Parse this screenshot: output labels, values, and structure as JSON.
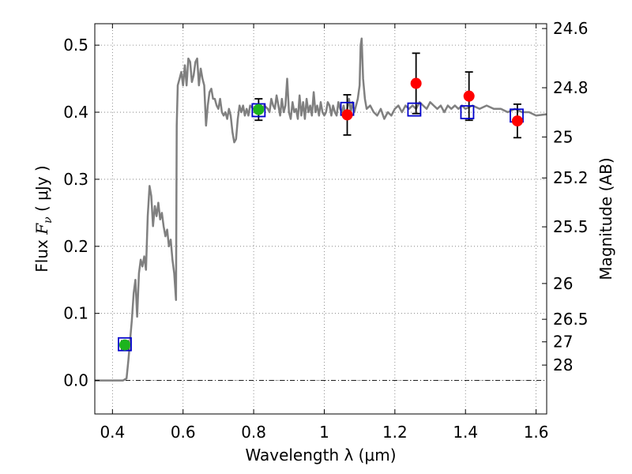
{
  "chart_data": {
    "type": "line",
    "xlabel": "Wavelength  λ (μm)",
    "ylabel_prefix": "Flux  ",
    "ylabel_var": "F",
    "ylabel_sub": "ν",
    "ylabel_unit": "  ( μJy )",
    "y2label": "Magnitude (AB)",
    "xlim": [
      0.35,
      1.63
    ],
    "ylim": [
      -0.05,
      0.532
    ],
    "grid": true,
    "x_ticks": [
      {
        "value": 0.4,
        "label": "0.4"
      },
      {
        "value": 0.6,
        "label": "0.6"
      },
      {
        "value": 0.8,
        "label": "0.8"
      },
      {
        "value": 1.0,
        "label": "1"
      },
      {
        "value": 1.2,
        "label": "1.2"
      },
      {
        "value": 1.4,
        "label": "1.4"
      },
      {
        "value": 1.6,
        "label": "1.6"
      }
    ],
    "y_ticks": [
      {
        "value": 0.0,
        "label": "0.0"
      },
      {
        "value": 0.1,
        "label": "0.1"
      },
      {
        "value": 0.2,
        "label": "0.2"
      },
      {
        "value": 0.3,
        "label": "0.3"
      },
      {
        "value": 0.4,
        "label": "0.4"
      },
      {
        "value": 0.5,
        "label": "0.5"
      }
    ],
    "mag_ticks": [
      {
        "value": 24.6,
        "label": "24.6"
      },
      {
        "value": 24.8,
        "label": "24.8"
      },
      {
        "value": 25.0,
        "label": "25"
      },
      {
        "value": 25.2,
        "label": "25.2"
      },
      {
        "value": 25.5,
        "label": "25.5"
      },
      {
        "value": 26.0,
        "label": "26"
      },
      {
        "value": 26.5,
        "label": "26.5"
      },
      {
        "value": 27.0,
        "label": "27"
      },
      {
        "value": 28.0,
        "label": "28"
      }
    ],
    "zero_line": 0.0,
    "model_spectrum": {
      "color": "#808080",
      "points": [
        [
          0.35,
          0.0
        ],
        [
          0.43,
          0.0
        ],
        [
          0.44,
          0.003
        ],
        [
          0.445,
          0.03
        ],
        [
          0.45,
          0.06
        ],
        [
          0.455,
          0.09
        ],
        [
          0.46,
          0.13
        ],
        [
          0.465,
          0.15
        ],
        [
          0.47,
          0.095
        ],
        [
          0.475,
          0.16
        ],
        [
          0.48,
          0.18
        ],
        [
          0.485,
          0.17
        ],
        [
          0.49,
          0.185
        ],
        [
          0.495,
          0.165
        ],
        [
          0.5,
          0.245
        ],
        [
          0.505,
          0.29
        ],
        [
          0.51,
          0.275
        ],
        [
          0.515,
          0.23
        ],
        [
          0.52,
          0.26
        ],
        [
          0.525,
          0.245
        ],
        [
          0.53,
          0.265
        ],
        [
          0.535,
          0.24
        ],
        [
          0.54,
          0.25
        ],
        [
          0.545,
          0.23
        ],
        [
          0.55,
          0.215
        ],
        [
          0.555,
          0.225
        ],
        [
          0.56,
          0.2
        ],
        [
          0.565,
          0.21
        ],
        [
          0.57,
          0.18
        ],
        [
          0.575,
          0.16
        ],
        [
          0.58,
          0.12
        ],
        [
          0.582,
          0.38
        ],
        [
          0.585,
          0.44
        ],
        [
          0.59,
          0.45
        ],
        [
          0.595,
          0.46
        ],
        [
          0.6,
          0.44
        ],
        [
          0.605,
          0.47
        ],
        [
          0.61,
          0.44
        ],
        [
          0.615,
          0.48
        ],
        [
          0.62,
          0.475
        ],
        [
          0.625,
          0.445
        ],
        [
          0.63,
          0.455
        ],
        [
          0.635,
          0.475
        ],
        [
          0.64,
          0.48
        ],
        [
          0.645,
          0.44
        ],
        [
          0.65,
          0.465
        ],
        [
          0.655,
          0.45
        ],
        [
          0.66,
          0.44
        ],
        [
          0.665,
          0.38
        ],
        [
          0.67,
          0.41
        ],
        [
          0.675,
          0.43
        ],
        [
          0.68,
          0.435
        ],
        [
          0.685,
          0.42
        ],
        [
          0.69,
          0.42
        ],
        [
          0.695,
          0.41
        ],
        [
          0.7,
          0.405
        ],
        [
          0.705,
          0.42
        ],
        [
          0.71,
          0.4
        ],
        [
          0.715,
          0.395
        ],
        [
          0.72,
          0.4
        ],
        [
          0.725,
          0.39
        ],
        [
          0.73,
          0.405
        ],
        [
          0.735,
          0.395
        ],
        [
          0.74,
          0.37
        ],
        [
          0.745,
          0.355
        ],
        [
          0.75,
          0.36
        ],
        [
          0.755,
          0.39
        ],
        [
          0.76,
          0.41
        ],
        [
          0.765,
          0.4
        ],
        [
          0.77,
          0.41
        ],
        [
          0.775,
          0.395
        ],
        [
          0.78,
          0.405
        ],
        [
          0.785,
          0.395
        ],
        [
          0.79,
          0.41
        ],
        [
          0.8,
          0.405
        ],
        [
          0.81,
          0.41
        ],
        [
          0.82,
          0.4
        ],
        [
          0.83,
          0.41
        ],
        [
          0.84,
          0.405
        ],
        [
          0.845,
          0.4
        ],
        [
          0.85,
          0.42
        ],
        [
          0.855,
          0.41
        ],
        [
          0.86,
          0.405
        ],
        [
          0.865,
          0.425
        ],
        [
          0.87,
          0.41
        ],
        [
          0.875,
          0.395
        ],
        [
          0.88,
          0.42
        ],
        [
          0.885,
          0.4
        ],
        [
          0.89,
          0.41
        ],
        [
          0.895,
          0.45
        ],
        [
          0.9,
          0.4
        ],
        [
          0.905,
          0.39
        ],
        [
          0.91,
          0.415
        ],
        [
          0.915,
          0.4
        ],
        [
          0.92,
          0.405
        ],
        [
          0.925,
          0.39
        ],
        [
          0.93,
          0.425
        ],
        [
          0.935,
          0.395
        ],
        [
          0.94,
          0.415
        ],
        [
          0.945,
          0.39
        ],
        [
          0.95,
          0.42
        ],
        [
          0.955,
          0.4
        ],
        [
          0.96,
          0.41
        ],
        [
          0.965,
          0.395
        ],
        [
          0.97,
          0.43
        ],
        [
          0.975,
          0.4
        ],
        [
          0.98,
          0.41
        ],
        [
          0.985,
          0.395
        ],
        [
          0.99,
          0.415
        ],
        [
          0.995,
          0.4
        ],
        [
          1.0,
          0.395
        ],
        [
          1.005,
          0.4
        ],
        [
          1.01,
          0.415
        ],
        [
          1.015,
          0.41
        ],
        [
          1.02,
          0.395
        ],
        [
          1.025,
          0.41
        ],
        [
          1.03,
          0.4
        ],
        [
          1.035,
          0.395
        ],
        [
          1.04,
          0.415
        ],
        [
          1.045,
          0.405
        ],
        [
          1.05,
          0.4
        ],
        [
          1.055,
          0.41
        ],
        [
          1.06,
          0.395
        ],
        [
          1.065,
          0.405
        ],
        [
          1.07,
          0.42
        ],
        [
          1.075,
          0.4
        ],
        [
          1.08,
          0.415
        ],
        [
          1.085,
          0.4
        ],
        [
          1.09,
          0.41
        ],
        [
          1.095,
          0.42
        ],
        [
          1.1,
          0.44
        ],
        [
          1.103,
          0.5
        ],
        [
          1.106,
          0.51
        ],
        [
          1.11,
          0.45
        ],
        [
          1.115,
          0.42
        ],
        [
          1.12,
          0.405
        ],
        [
          1.13,
          0.41
        ],
        [
          1.14,
          0.4
        ],
        [
          1.15,
          0.395
        ],
        [
          1.16,
          0.405
        ],
        [
          1.17,
          0.39
        ],
        [
          1.18,
          0.4
        ],
        [
          1.19,
          0.395
        ],
        [
          1.2,
          0.405
        ],
        [
          1.21,
          0.41
        ],
        [
          1.22,
          0.4
        ],
        [
          1.23,
          0.41
        ],
        [
          1.24,
          0.405
        ],
        [
          1.25,
          0.41
        ],
        [
          1.26,
          0.405
        ],
        [
          1.27,
          0.415
        ],
        [
          1.28,
          0.41
        ],
        [
          1.29,
          0.405
        ],
        [
          1.3,
          0.415
        ],
        [
          1.31,
          0.41
        ],
        [
          1.32,
          0.405
        ],
        [
          1.33,
          0.41
        ],
        [
          1.34,
          0.4
        ],
        [
          1.35,
          0.41
        ],
        [
          1.36,
          0.405
        ],
        [
          1.37,
          0.41
        ],
        [
          1.38,
          0.405
        ],
        [
          1.39,
          0.41
        ],
        [
          1.4,
          0.405
        ],
        [
          1.42,
          0.41
        ],
        [
          1.44,
          0.405
        ],
        [
          1.46,
          0.41
        ],
        [
          1.48,
          0.405
        ],
        [
          1.5,
          0.405
        ],
        [
          1.52,
          0.4
        ],
        [
          1.54,
          0.405
        ],
        [
          1.56,
          0.4
        ],
        [
          1.58,
          0.4
        ],
        [
          1.6,
          0.395
        ],
        [
          1.63,
          0.397
        ]
      ]
    },
    "model_photometry": {
      "color": "#0000cc",
      "marker": "open-square",
      "points": [
        [
          0.435,
          0.054
        ],
        [
          0.814,
          0.403
        ],
        [
          1.065,
          0.405
        ],
        [
          1.255,
          0.404
        ],
        [
          1.405,
          0.4
        ],
        [
          1.545,
          0.395
        ]
      ]
    },
    "observed_optical": {
      "color": "#1db41d",
      "marker": "filled-circle",
      "points": [
        [
          0.435,
          0.053,
          0.006
        ],
        [
          0.814,
          0.404,
          0.016
        ]
      ]
    },
    "observed_nir": {
      "color": "#ff0000",
      "marker": "filled-circle",
      "points": [
        [
          1.065,
          0.396,
          0.03
        ],
        [
          1.26,
          0.443,
          0.045
        ],
        [
          1.41,
          0.424,
          0.036
        ],
        [
          1.547,
          0.387,
          0.025
        ]
      ]
    }
  }
}
